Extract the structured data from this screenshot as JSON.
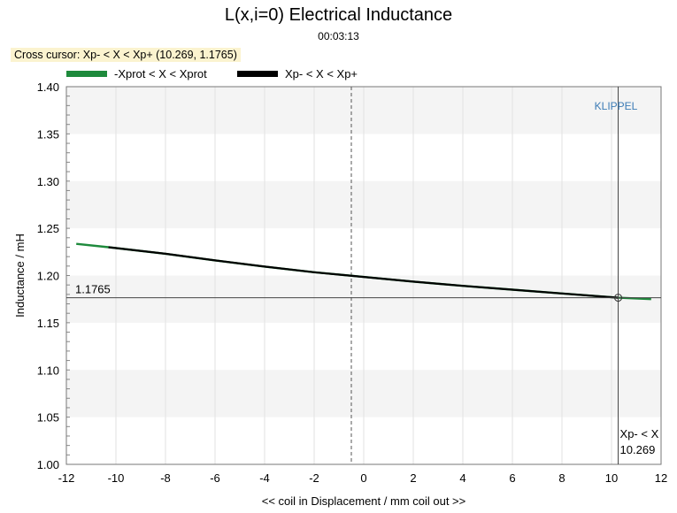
{
  "chart_data": {
    "type": "line",
    "title": "L(x,i=0) Electrical Inductance",
    "subtitle": "00:03:13",
    "cursor_label": "Cross cursor: Xp- < X < Xp+ (10.269, 1.1765)",
    "xlabel": "<< coil in Displacement / mm coil out >>",
    "ylabel": "Inductance / mH",
    "xlim": [
      -12,
      12
    ],
    "ylim": [
      1.0,
      1.4
    ],
    "xticks": [
      -12,
      -10,
      -8,
      -6,
      -4,
      -2,
      0,
      2,
      4,
      6,
      8,
      10,
      12
    ],
    "yticks": [
      "1.00",
      "1.05",
      "1.10",
      "1.15",
      "1.20",
      "1.25",
      "1.30",
      "1.35",
      "1.40"
    ],
    "watermark": "KLIPPEL",
    "legend": [
      {
        "label": "-Xprot < X < Xprot",
        "color": "#1e8a3c"
      },
      {
        "label": "Xp- < X < Xp+",
        "color": "#000000"
      }
    ],
    "series": [
      {
        "name": "-Xprot < X < Xprot",
        "color": "#1e8a3c",
        "x": [
          -11.6,
          -10.3,
          -8,
          -6,
          -4,
          -2,
          0,
          2,
          4,
          6,
          8,
          10.269,
          11.6
        ],
        "y": [
          1.2335,
          1.23,
          1.223,
          1.216,
          1.2095,
          1.2035,
          1.1985,
          1.1935,
          1.189,
          1.185,
          1.181,
          1.1765,
          1.175
        ]
      },
      {
        "name": "Xp- < X < Xp+",
        "color": "#000000",
        "x": [
          -10.3,
          -8,
          -6,
          -4,
          -2,
          0,
          2,
          4,
          6,
          8,
          10.269
        ],
        "y": [
          1.23,
          1.223,
          1.216,
          1.2095,
          1.2035,
          1.1985,
          1.1935,
          1.189,
          1.185,
          1.181,
          1.1765
        ]
      }
    ],
    "cursor": {
      "x": 10.269,
      "y": 1.1765,
      "y_label": "1.1765",
      "x_label_top": "Xp- < X",
      "x_label_bottom": "10.269"
    },
    "dashed_marker_x": -0.5
  }
}
